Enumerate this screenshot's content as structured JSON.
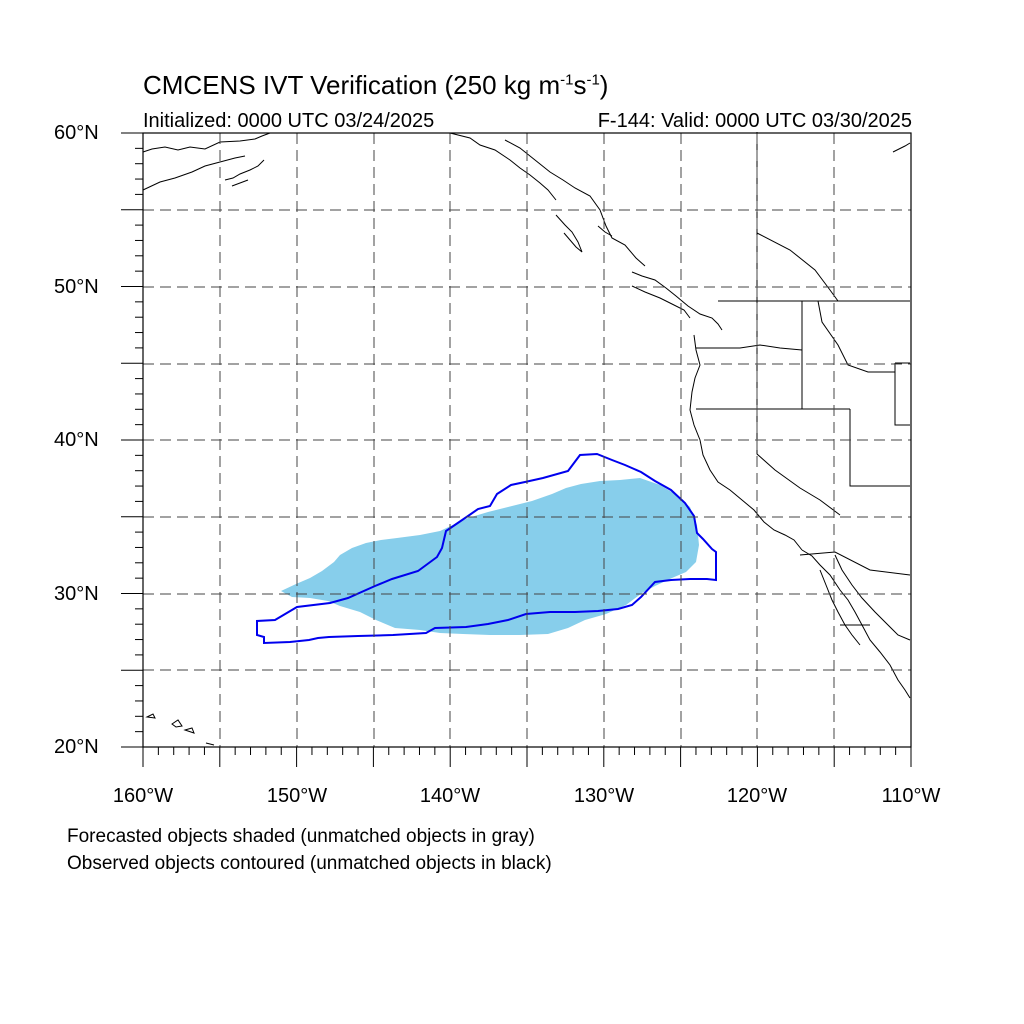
{
  "header": {
    "title_main": "CMCENS IVT Verification (250 kg m",
    "title_exp1": "-1",
    "title_mid": "s",
    "title_exp2": "-1",
    "title_end": ")",
    "initialized": "Initialized: 0000 UTC 03/24/2025",
    "valid": "F-144: Valid: 0000 UTC 03/30/2025"
  },
  "axes": {
    "lat_labels": [
      "60°N",
      "50°N",
      "40°N",
      "30°N",
      "20°N"
    ],
    "lon_labels": [
      "160°W",
      "150°W",
      "140°W",
      "130°W",
      "120°W",
      "110°W"
    ]
  },
  "legend": {
    "line1": "Forecasted objects shaded (unmatched objects in gray)",
    "line2": "Observed objects contoured (unmatched objects in black)"
  },
  "colors": {
    "forecast_fill": "#87ceeb",
    "observed_contour": "#0000ee",
    "coastline": "#000000",
    "grid": "#333333"
  }
}
